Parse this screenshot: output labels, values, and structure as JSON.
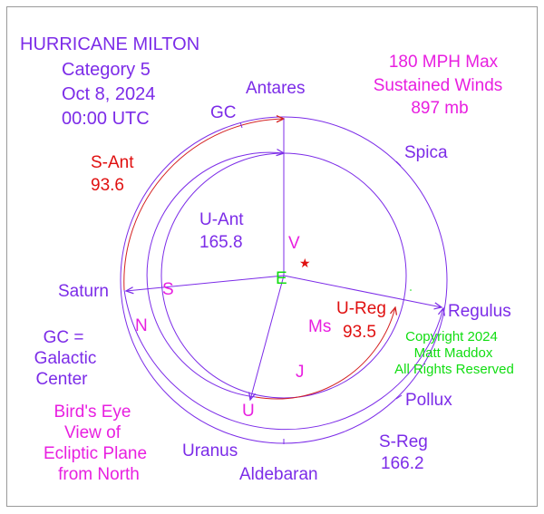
{
  "title": {
    "line1": "HURRICANE MILTON",
    "line2": "Category 5",
    "line3": "Oct 8, 2024",
    "line4": "00:00 UTC"
  },
  "winds": {
    "line1": "180 MPH Max",
    "line2": "Sustained Winds",
    "line3": "897 mb"
  },
  "legend_gc": {
    "line1": "GC =",
    "line2": "Galactic",
    "line3": "Center"
  },
  "view_note": {
    "line1": "Bird's Eye",
    "line2": "View of",
    "line3": "Ecliptic Plane",
    "line4": "from North"
  },
  "copyright": {
    "line1": "Copyright 2024",
    "line2": "Matt Maddox",
    "line3": "All Rights Reserved"
  },
  "stars": {
    "antares": "Antares",
    "gc": "GC",
    "spica": "Spica",
    "saturn": "Saturn",
    "regulus": "Regulus",
    "pollux": "Pollux",
    "uranus": "Uranus",
    "aldebaran": "Aldebaran"
  },
  "angles": {
    "s_ant_label": "S-Ant",
    "s_ant_value": "93.6",
    "u_ant_label": "U-Ant",
    "u_ant_value": "165.8",
    "u_reg_label": "U-Reg",
    "u_reg_value": "93.5",
    "s_reg_label": "S-Reg",
    "s_reg_value": "166.2"
  },
  "planets": {
    "earth": "E",
    "venus": "V",
    "saturn": "S",
    "uranus": "U",
    "mars": "Ms",
    "jupiter": "J",
    "neptune": "N",
    "star_symbol": "★"
  },
  "colors": {
    "purple": "#7c2ce8",
    "magenta": "#e81fe0",
    "red": "#e01010",
    "green": "#11dd11",
    "arc_red": "#d42020"
  }
}
